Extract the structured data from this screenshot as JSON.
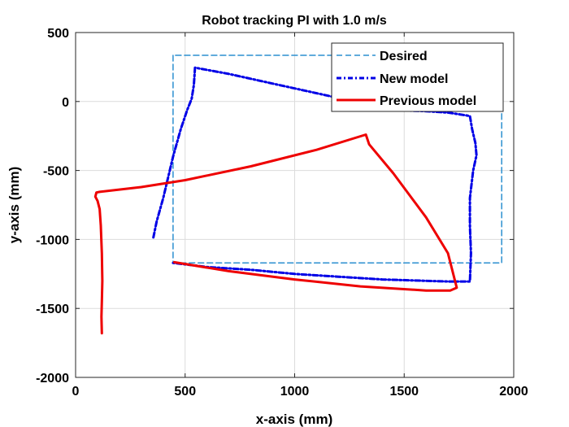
{
  "chart_data": {
    "type": "line",
    "title": "Robot tracking PI with 1.0 m/s",
    "xlabel": "x-axis (mm)",
    "ylabel": "y-axis (mm)",
    "xlim": [
      0,
      2000
    ],
    "ylim": [
      -2000,
      500
    ],
    "xticks": [
      0,
      500,
      1000,
      1500,
      2000
    ],
    "yticks": [
      500,
      0,
      -500,
      -1000,
      -1500,
      -2000
    ],
    "xtick_labels": [
      "0",
      "500",
      "1000",
      "1500",
      "2000"
    ],
    "ytick_labels": [
      "500",
      "0",
      "-500",
      "-1000",
      "-1500",
      "-2000"
    ],
    "grid": true,
    "legend_position": "top-right",
    "series": [
      {
        "name": "Desired",
        "color": "#2b8fd0",
        "style": "dashed",
        "x": [
          445,
          445,
          1945,
          1945,
          445
        ],
        "y": [
          335,
          -1170,
          -1170,
          335,
          335
        ]
      },
      {
        "name": "New model",
        "color": "#0000e6",
        "style": "dashdot",
        "x": [
          355,
          370,
          400,
          445,
          480,
          510,
          530,
          540,
          545,
          700,
          900,
          1100,
          1300,
          1500,
          1600,
          1700,
          1800,
          1810,
          1825,
          1830,
          1815,
          1800,
          1800,
          1805,
          1800,
          1700,
          1600,
          1400,
          1200,
          1000,
          800,
          600,
          445
        ],
        "y": [
          -985,
          -870,
          -700,
          -400,
          -200,
          -60,
          20,
          120,
          245,
          200,
          130,
          60,
          -10,
          -65,
          -70,
          -80,
          -105,
          -200,
          -300,
          -390,
          -500,
          -700,
          -900,
          -1100,
          -1305,
          -1305,
          -1300,
          -1290,
          -1270,
          -1250,
          -1220,
          -1200,
          -1170
        ]
      },
      {
        "name": "Previous model",
        "color": "#ee0000",
        "style": "solid",
        "x": [
          120,
          118,
          120,
          122,
          120,
          115,
          110,
          100,
          90,
          95,
          110,
          300,
          500,
          800,
          1100,
          1325,
          1340,
          1450,
          1600,
          1700,
          1740,
          1710,
          1600,
          1300,
          1000,
          700,
          450
        ],
        "y": [
          -1680,
          -1560,
          -1450,
          -1300,
          -1100,
          -900,
          -780,
          -720,
          -690,
          -660,
          -655,
          -620,
          -570,
          -470,
          -350,
          -240,
          -310,
          -520,
          -840,
          -1100,
          -1350,
          -1370,
          -1370,
          -1340,
          -1290,
          -1230,
          -1165
        ]
      }
    ]
  }
}
